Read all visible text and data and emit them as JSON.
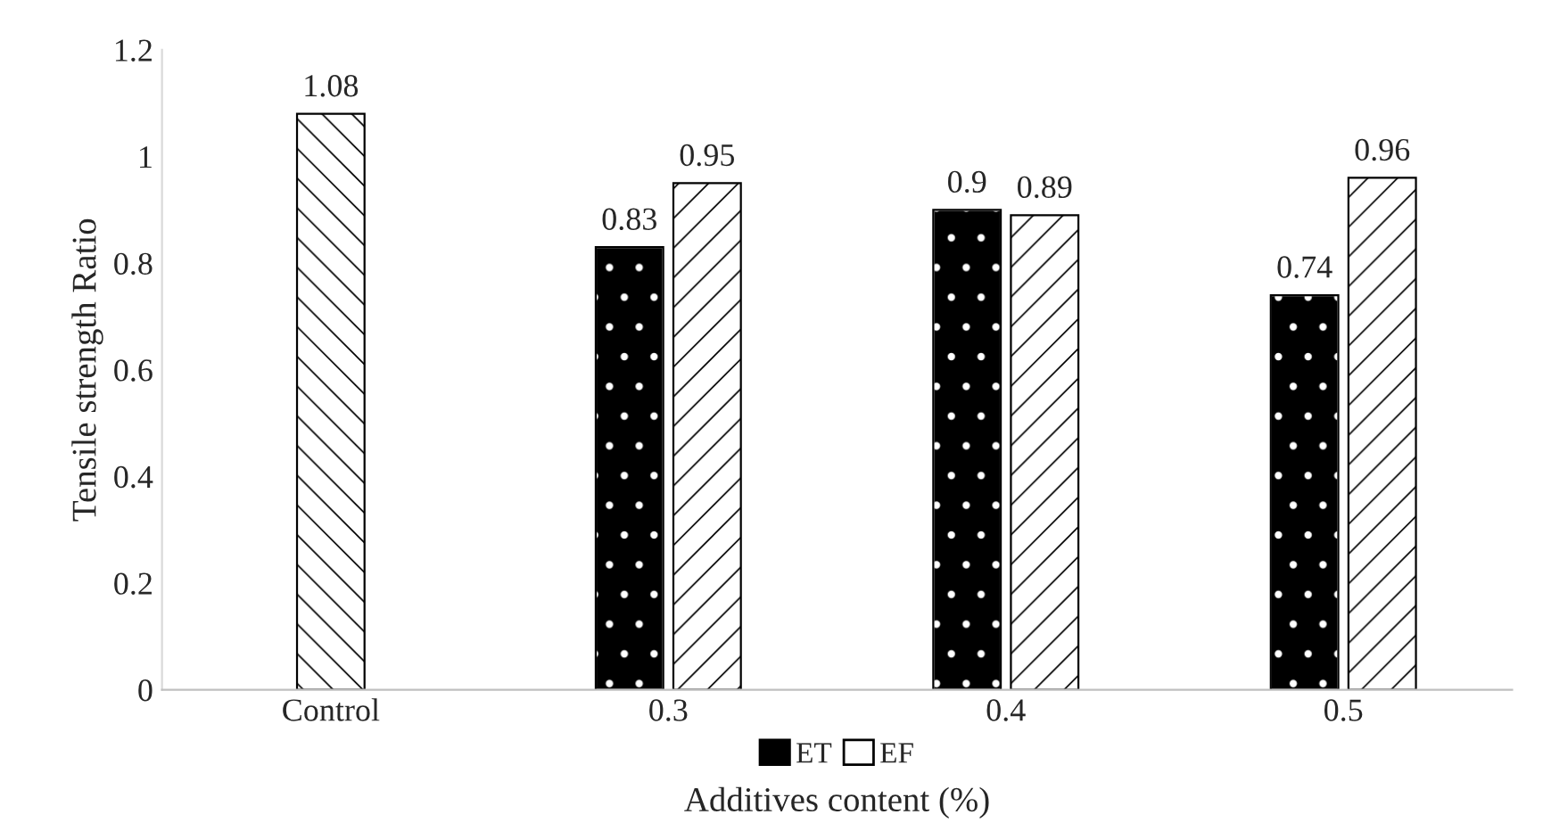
{
  "chart_data": {
    "type": "bar",
    "xlabel": "Additives content (%)",
    "ylabel": "Tensile strength Ratio",
    "categories": [
      "Control",
      "0.3",
      "0.4",
      "0.5"
    ],
    "series": [
      {
        "color": "#ffffff",
        "values": [
          1.08,
          null,
          null,
          null
        ]
      },
      {
        "name": "ET",
        "color": "#000000",
        "values": [
          null,
          0.83,
          0.9,
          0.74
        ]
      },
      {
        "name": "EF",
        "color": "#ffffff",
        "values": [
          null,
          0.95,
          0.89,
          0.96
        ]
      }
    ],
    "ylim": [
      0,
      1.2
    ],
    "yticks": [
      0,
      0.2,
      0.4,
      0.6,
      0.8,
      1,
      1.2
    ],
    "data_labels": true,
    "grid": false,
    "legend": "bottom"
  }
}
